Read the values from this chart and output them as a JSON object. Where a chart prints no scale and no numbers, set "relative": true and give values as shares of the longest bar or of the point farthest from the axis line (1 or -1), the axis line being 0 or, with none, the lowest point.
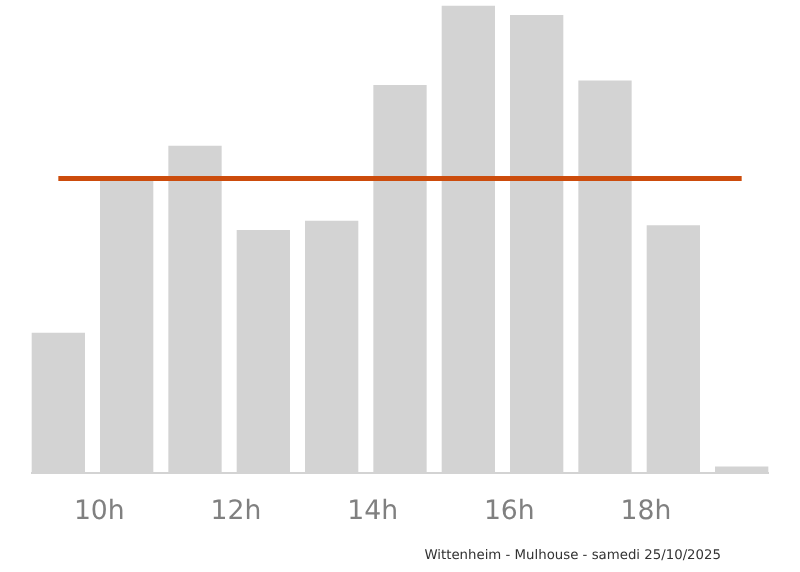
{
  "chart_data": {
    "type": "bar",
    "relative": true,
    "x": [
      9.4,
      10.4,
      11.4,
      12.4,
      13.4,
      14.4,
      15.4,
      16.4,
      17.4,
      18.4,
      19.4
    ],
    "values": [
      0.3,
      0.63,
      0.7,
      0.52,
      0.54,
      0.83,
      1.0,
      0.98,
      0.84,
      0.53,
      0.014
    ],
    "color": "#d3d3d3",
    "xlim": [
      9.0,
      19.8
    ],
    "xticks": [
      {
        "value": 10,
        "label": "10h"
      },
      {
        "value": 12,
        "label": "12h"
      },
      {
        "value": 14,
        "label": "14h"
      },
      {
        "value": 16,
        "label": "16h"
      },
      {
        "value": 18,
        "label": "18h"
      }
    ],
    "ref_lines": [
      {
        "axis": "y",
        "value": 0.63,
        "label": null,
        "color": "#cc4c0c"
      }
    ],
    "annotations": [
      "Wittenheim - Mulhouse - samedi 25/10/2025"
    ],
    "grid": false
  }
}
